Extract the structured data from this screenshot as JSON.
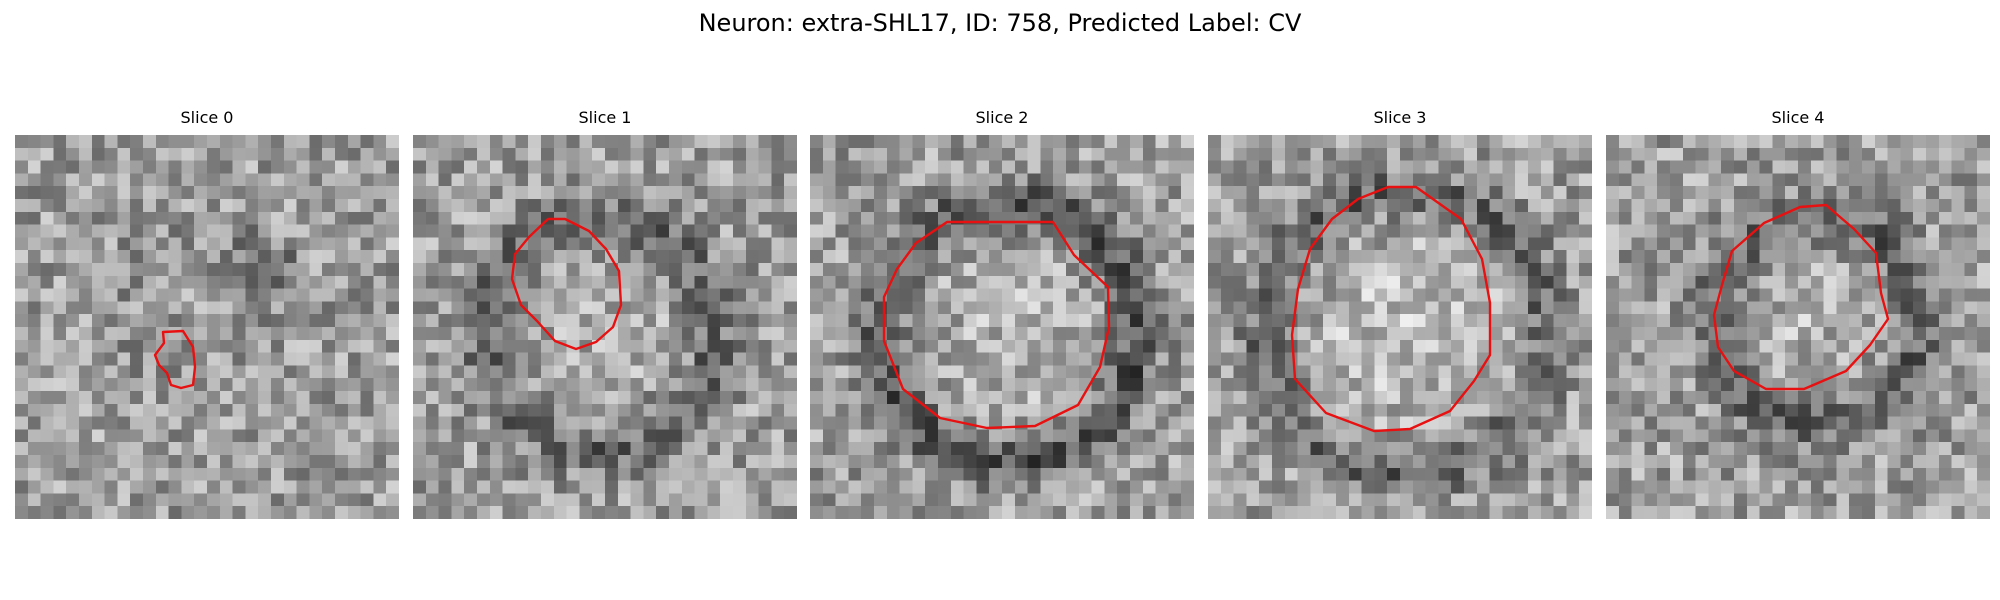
{
  "title": "Neuron: extra-SHL17, ID: 758, Predicted Label: CV",
  "slices": [
    {
      "label": "Slice 0"
    },
    {
      "label": "Slice 1"
    },
    {
      "label": "Slice 2"
    },
    {
      "label": "Slice 3"
    },
    {
      "label": "Slice 4"
    }
  ],
  "colors": {
    "contour": "#e81010",
    "colormap": "grayscale"
  }
}
